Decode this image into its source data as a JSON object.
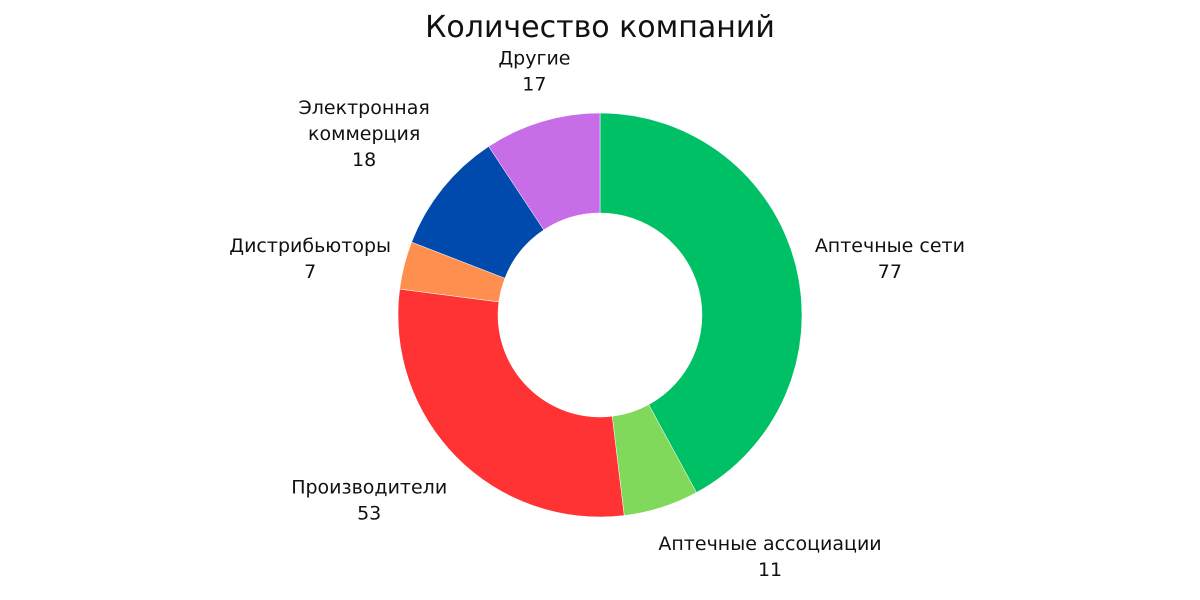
{
  "chart_data": {
    "type": "pie",
    "title": "Количество компаний",
    "donut": true,
    "direction": "clockwise",
    "start": "top",
    "slices": [
      {
        "label": [
          "Аптечные сети"
        ],
        "value": 77,
        "color": "#00c065"
      },
      {
        "label": [
          "Аптечные ассоциации"
        ],
        "value": 11,
        "color": "#80d95a"
      },
      {
        "label": [
          "Производители"
        ],
        "value": 53,
        "color": "#ff3333"
      },
      {
        "label": [
          "Дистрибьюторы"
        ],
        "value": 7,
        "color": "#ff8f4f"
      },
      {
        "label": [
          "Электронная",
          "коммерция"
        ],
        "value": 18,
        "color": "#004aad"
      },
      {
        "label": [
          "Другие"
        ],
        "value": 17,
        "color": "#c86de8"
      }
    ]
  }
}
